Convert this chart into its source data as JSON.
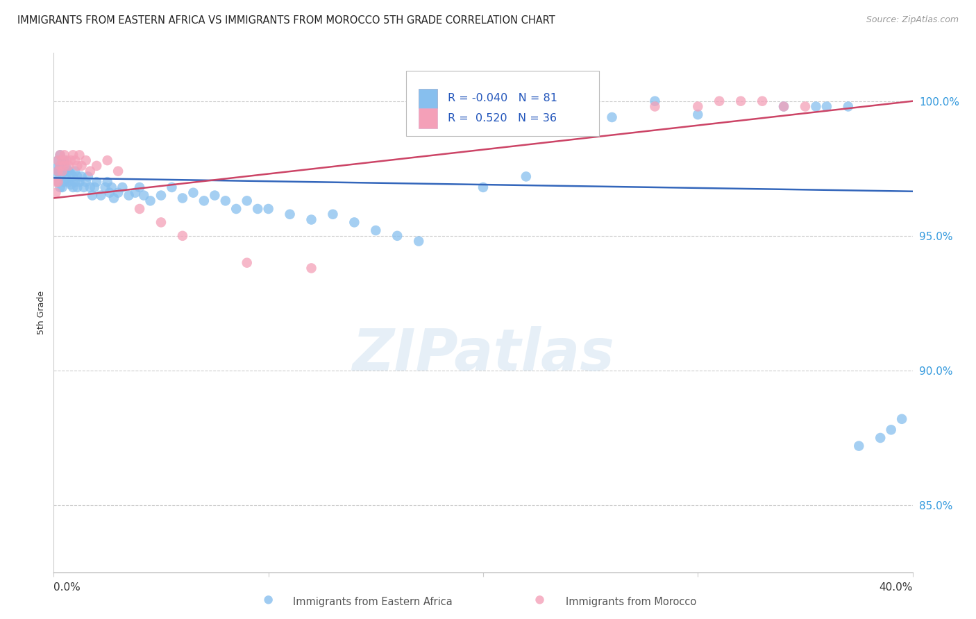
{
  "title": "IMMIGRANTS FROM EASTERN AFRICA VS IMMIGRANTS FROM MOROCCO 5TH GRADE CORRELATION CHART",
  "source": "Source: ZipAtlas.com",
  "ylabel": "5th Grade",
  "ytick_labels": [
    "100.0%",
    "95.0%",
    "90.0%",
    "85.0%"
  ],
  "ytick_values": [
    1.0,
    0.95,
    0.9,
    0.85
  ],
  "xlim": [
    0.0,
    0.4
  ],
  "ylim": [
    0.825,
    1.018
  ],
  "R_blue": -0.04,
  "N_blue": 81,
  "R_pink": 0.52,
  "N_pink": 36,
  "legend_label_blue": "Immigrants from Eastern Africa",
  "legend_label_pink": "Immigrants from Morocco",
  "blue_color": "#87BFEE",
  "pink_color": "#F4A0B8",
  "blue_line_color": "#3366BB",
  "pink_line_color": "#CC4466",
  "blue_scatter_x": [
    0.001,
    0.001,
    0.002,
    0.002,
    0.002,
    0.003,
    0.003,
    0.003,
    0.003,
    0.004,
    0.004,
    0.004,
    0.005,
    0.005,
    0.005,
    0.006,
    0.006,
    0.007,
    0.007,
    0.008,
    0.008,
    0.009,
    0.009,
    0.01,
    0.01,
    0.011,
    0.011,
    0.012,
    0.013,
    0.014,
    0.015,
    0.016,
    0.017,
    0.018,
    0.019,
    0.02,
    0.022,
    0.024,
    0.025,
    0.026,
    0.027,
    0.028,
    0.03,
    0.032,
    0.035,
    0.038,
    0.04,
    0.042,
    0.045,
    0.05,
    0.055,
    0.06,
    0.065,
    0.07,
    0.075,
    0.08,
    0.085,
    0.09,
    0.095,
    0.1,
    0.11,
    0.12,
    0.13,
    0.14,
    0.15,
    0.16,
    0.17,
    0.2,
    0.22,
    0.24,
    0.26,
    0.28,
    0.3,
    0.34,
    0.355,
    0.36,
    0.37,
    0.375,
    0.385,
    0.39,
    0.395
  ],
  "blue_scatter_y": [
    0.975,
    0.972,
    0.978,
    0.974,
    0.97,
    0.98,
    0.976,
    0.972,
    0.968,
    0.977,
    0.973,
    0.968,
    0.978,
    0.974,
    0.97,
    0.975,
    0.971,
    0.974,
    0.97,
    0.973,
    0.969,
    0.972,
    0.968,
    0.974,
    0.97,
    0.972,
    0.968,
    0.97,
    0.972,
    0.968,
    0.97,
    0.972,
    0.968,
    0.965,
    0.968,
    0.97,
    0.965,
    0.968,
    0.97,
    0.966,
    0.968,
    0.964,
    0.966,
    0.968,
    0.965,
    0.966,
    0.968,
    0.965,
    0.963,
    0.965,
    0.968,
    0.964,
    0.966,
    0.963,
    0.965,
    0.963,
    0.96,
    0.963,
    0.96,
    0.96,
    0.958,
    0.956,
    0.958,
    0.955,
    0.952,
    0.95,
    0.948,
    0.968,
    0.972,
    0.99,
    0.994,
    1.0,
    0.995,
    0.998,
    0.998,
    0.998,
    0.998,
    0.872,
    0.875,
    0.878,
    0.882
  ],
  "pink_scatter_x": [
    0.001,
    0.001,
    0.002,
    0.002,
    0.002,
    0.003,
    0.003,
    0.004,
    0.004,
    0.005,
    0.005,
    0.006,
    0.007,
    0.008,
    0.009,
    0.01,
    0.011,
    0.012,
    0.013,
    0.015,
    0.017,
    0.02,
    0.025,
    0.03,
    0.04,
    0.05,
    0.06,
    0.09,
    0.12,
    0.28,
    0.3,
    0.31,
    0.32,
    0.33,
    0.34,
    0.35
  ],
  "pink_scatter_y": [
    0.97,
    0.966,
    0.978,
    0.974,
    0.97,
    0.98,
    0.976,
    0.978,
    0.974,
    0.98,
    0.976,
    0.978,
    0.976,
    0.978,
    0.98,
    0.978,
    0.976,
    0.98,
    0.976,
    0.978,
    0.974,
    0.976,
    0.978,
    0.974,
    0.96,
    0.955,
    0.95,
    0.94,
    0.938,
    0.998,
    0.998,
    1.0,
    1.0,
    1.0,
    0.998,
    0.998
  ],
  "blue_line_y0": 0.9715,
  "blue_line_y1": 0.9665,
  "pink_line_y0": 0.964,
  "pink_line_y1": 1.0
}
